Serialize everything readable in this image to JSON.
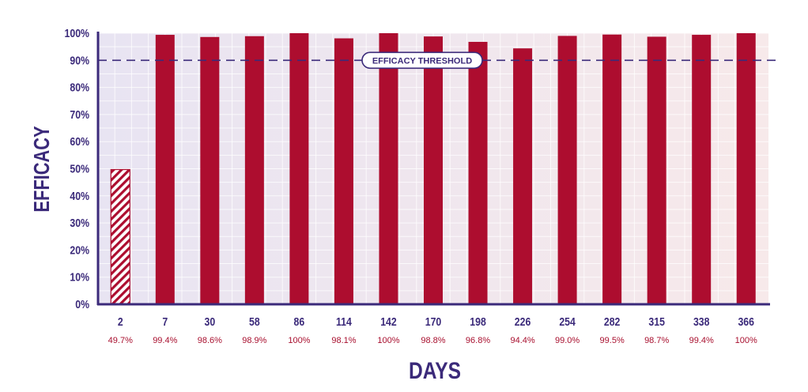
{
  "chart_data": {
    "type": "bar",
    "xlabel": "DAYS",
    "ylabel": "EFFICACY",
    "ylim": [
      0,
      100
    ],
    "yticks": [
      "0%",
      "10%",
      "20%",
      "30%",
      "40%",
      "50%",
      "60%",
      "70%",
      "80%",
      "90%",
      "100%"
    ],
    "categories": [
      "2",
      "7",
      "30",
      "58",
      "86",
      "114",
      "142",
      "170",
      "198",
      "226",
      "254",
      "282",
      "315",
      "338",
      "366"
    ],
    "values": [
      49.7,
      99.4,
      98.6,
      98.9,
      100,
      98.1,
      100,
      98.8,
      96.8,
      94.4,
      99.0,
      99.5,
      98.7,
      99.4,
      100
    ],
    "data_labels": [
      "49.7%",
      "99.4%",
      "98.6%",
      "98.9%",
      "100%",
      "98.1%",
      "100%",
      "98.8%",
      "96.8%",
      "94.4%",
      "99.0%",
      "99.5%",
      "98.7%",
      "99.4%",
      "100%"
    ],
    "hatched_categories": [
      "2"
    ],
    "threshold": {
      "value": 90,
      "label": "EFFICACY THRESHOLD"
    },
    "grid": true,
    "colors": {
      "bar": "#ad0d2f",
      "axis": "#3b2a7a",
      "text": "#3b2a7a",
      "data_label": "#a80f2e",
      "background_left": "#e8e4f2",
      "background_right": "#f7e9ea"
    }
  }
}
